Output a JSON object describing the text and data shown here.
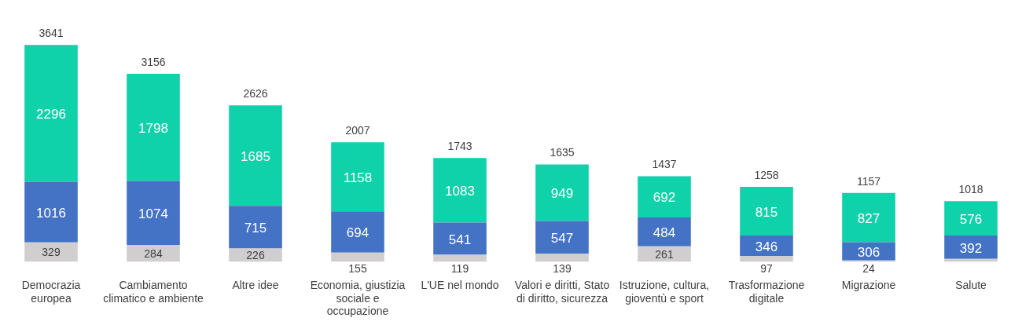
{
  "chart_data": {
    "type": "bar",
    "stacked": true,
    "tick_labels": "x",
    "grid": false,
    "legend": false,
    "categories": [
      "Democrazia europea",
      "Cambiamento climatico e ambiente",
      "Altre idee",
      "Economia, giustizia sociale e occupazione",
      "L'UE nel mondo",
      "Valori e diritti, Stato di diritto, sicurezza",
      "Istruzione, cultura, gioventù e sport",
      "Trasformazione digitale",
      "Migrazione",
      "Salute"
    ],
    "series": [
      {
        "color": "#d0cece",
        "values": [
          329,
          284,
          226,
          155,
          119,
          139,
          261,
          97,
          24,
          50
        ],
        "value_labels": [
          "329",
          "284",
          "226",
          "155",
          "119",
          "139",
          "261",
          "97",
          "24",
          null
        ]
      },
      {
        "color": "#4472c4",
        "values": [
          1016,
          1074,
          715,
          694,
          541,
          547,
          484,
          346,
          306,
          392
        ],
        "value_labels": [
          "1016",
          "1074",
          "715",
          "694",
          "541",
          "547",
          "484",
          "346",
          "306",
          "392"
        ]
      },
      {
        "color": "#0fd1aa",
        "values": [
          2296,
          1798,
          1685,
          1158,
          1083,
          949,
          692,
          815,
          827,
          576
        ],
        "value_labels": [
          "2296",
          "1798",
          "1685",
          "1158",
          "1083",
          "949",
          "692",
          "815",
          "827",
          "576"
        ]
      }
    ],
    "totals": [
      "3641",
      "3156",
      "2626",
      "2007",
      "1743",
      "1635",
      "1437",
      "1258",
      "1157",
      "1018"
    ]
  }
}
